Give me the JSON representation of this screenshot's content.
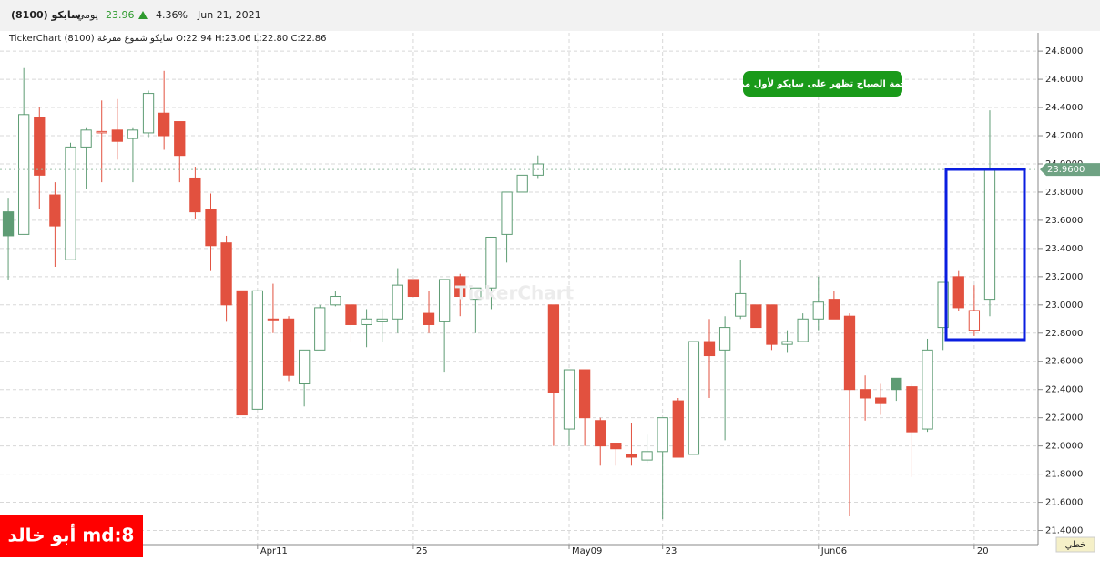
{
  "header": {
    "symbol": "سايكو (8100)",
    "period": "يومي",
    "price": "23.96",
    "change": "4.36%",
    "date": "Jun 21, 2021"
  },
  "chart_data": {
    "type": "candlestick",
    "subtitle": "TickerChart سايكو شموع مفرغة (8100) O:22.94 H:23.06 L:22.80 C:22.86",
    "annotation": "نجمة الصباح تظهر على سايكو لأول مره",
    "watermark": "TickerChart",
    "categories": [
      null,
      null,
      null,
      null,
      null,
      null,
      null,
      null,
      null,
      null,
      null,
      null,
      null,
      null,
      null,
      null,
      "Apr11",
      null,
      null,
      null,
      null,
      null,
      null,
      null,
      null,
      null,
      "25",
      null,
      null,
      null,
      null,
      null,
      null,
      null,
      null,
      null,
      "May09",
      null,
      null,
      null,
      null,
      null,
      "23",
      null,
      null,
      null,
      null,
      null,
      null,
      null,
      null,
      null,
      "Jun06",
      null,
      null,
      null,
      null,
      null,
      null,
      null,
      null,
      null,
      "20",
      null
    ],
    "open": [
      23.66,
      23.5,
      24.33,
      23.78,
      23.32,
      24.12,
      24.22,
      24.24,
      24.18,
      24.22,
      24.36,
      24.3,
      23.9,
      23.68,
      23.44,
      23.1,
      22.26,
      22.9,
      22.9,
      22.44,
      22.68,
      23.0,
      23.0,
      22.86,
      22.88,
      22.9,
      23.18,
      22.94,
      22.88,
      23.2,
      23.04,
      23.12,
      23.5,
      23.8,
      23.92,
      23.0,
      22.12,
      22.54,
      22.18,
      22.02,
      21.94,
      21.9,
      21.96,
      22.32,
      21.94,
      22.74,
      22.68,
      22.92,
      23.0,
      23.0,
      22.72,
      22.74,
      22.9,
      23.04,
      22.92,
      22.4,
      22.34,
      22.48,
      22.42,
      22.12,
      22.84,
      23.2,
      22.82,
      23.04
    ],
    "high": [
      23.76,
      24.68,
      24.4,
      23.87,
      24.15,
      24.26,
      24.45,
      24.46,
      24.26,
      24.52,
      24.66,
      24.3,
      23.98,
      23.79,
      23.49,
      23.1,
      23.1,
      23.15,
      22.92,
      22.68,
      23.0,
      23.1,
      23.0,
      22.97,
      22.97,
      23.26,
      23.18,
      23.1,
      23.18,
      23.22,
      23.12,
      23.48,
      23.8,
      23.92,
      24.06,
      23.0,
      22.54,
      22.54,
      22.2,
      22.02,
      22.16,
      22.08,
      22.2,
      22.34,
      22.74,
      22.9,
      22.92,
      23.32,
      23.0,
      23.0,
      22.82,
      22.94,
      23.2,
      23.1,
      22.94,
      22.5,
      22.44,
      22.48,
      22.44,
      22.76,
      23.16,
      23.24,
      23.14,
      24.38
    ],
    "low": [
      23.18,
      23.5,
      23.68,
      23.27,
      23.32,
      23.82,
      23.87,
      24.03,
      23.87,
      24.19,
      24.1,
      23.87,
      23.61,
      23.24,
      22.88,
      22.22,
      22.26,
      22.8,
      22.46,
      22.28,
      22.68,
      22.99,
      22.74,
      22.7,
      22.74,
      22.8,
      23.06,
      22.8,
      22.52,
      22.92,
      22.8,
      22.97,
      23.3,
      23.8,
      23.9,
      22.0,
      22.0,
      22.0,
      21.86,
      21.86,
      21.86,
      21.88,
      21.48,
      21.92,
      21.94,
      22.34,
      22.04,
      22.9,
      22.84,
      22.68,
      22.66,
      22.74,
      22.82,
      22.9,
      21.5,
      22.18,
      22.22,
      22.32,
      21.78,
      22.1,
      22.68,
      22.96,
      22.78,
      22.92
    ],
    "close": [
      23.49,
      24.35,
      23.92,
      23.56,
      24.12,
      24.24,
      24.23,
      24.16,
      24.24,
      24.5,
      24.2,
      24.06,
      23.66,
      23.42,
      23.0,
      22.22,
      23.1,
      22.9,
      22.5,
      22.68,
      22.98,
      23.06,
      22.86,
      22.9,
      22.9,
      23.14,
      23.06,
      22.86,
      23.18,
      23.06,
      23.12,
      23.48,
      23.8,
      23.92,
      24.0,
      22.38,
      22.54,
      22.2,
      22.0,
      21.98,
      21.92,
      21.96,
      22.2,
      21.92,
      22.74,
      22.64,
      22.84,
      23.08,
      22.84,
      22.72,
      22.74,
      22.9,
      23.02,
      22.9,
      22.4,
      22.34,
      22.3,
      22.4,
      22.1,
      22.68,
      23.16,
      22.98,
      22.96,
      23.96
    ],
    "up_color": "#5e9c74",
    "down_color": "#e2513f",
    "last_price": {
      "value": 23.96,
      "label": "23.9600"
    },
    "ylim": [
      21.3,
      24.93
    ],
    "yticks": [
      {
        "value": 21.4,
        "label": "21.4000"
      },
      {
        "value": 21.6,
        "label": "21.6000"
      },
      {
        "value": 21.8,
        "label": "21.8000"
      },
      {
        "value": 22.0,
        "label": "22.0000"
      },
      {
        "value": 22.2,
        "label": "22.2000"
      },
      {
        "value": 22.4,
        "label": "22.4000"
      },
      {
        "value": 22.6,
        "label": "22.6000"
      },
      {
        "value": 22.8,
        "label": "22.8000"
      },
      {
        "value": 23.0,
        "label": "23.0000"
      },
      {
        "value": 23.2,
        "label": "23.2000"
      },
      {
        "value": 23.4,
        "label": "23.4000"
      },
      {
        "value": 23.6,
        "label": "23.6000"
      },
      {
        "value": 23.8,
        "label": "23.8000"
      },
      {
        "value": 24.0,
        "label": "24.0000"
      },
      {
        "value": 24.2,
        "label": "24.2000"
      },
      {
        "value": 24.4,
        "label": "24.4000"
      },
      {
        "value": 24.6,
        "label": "24.6000"
      },
      {
        "value": 24.8,
        "label": "24.8000"
      }
    ],
    "grid": true,
    "chart_style_button": "خطي",
    "author_badge": "md:8 أبو خالد"
  }
}
